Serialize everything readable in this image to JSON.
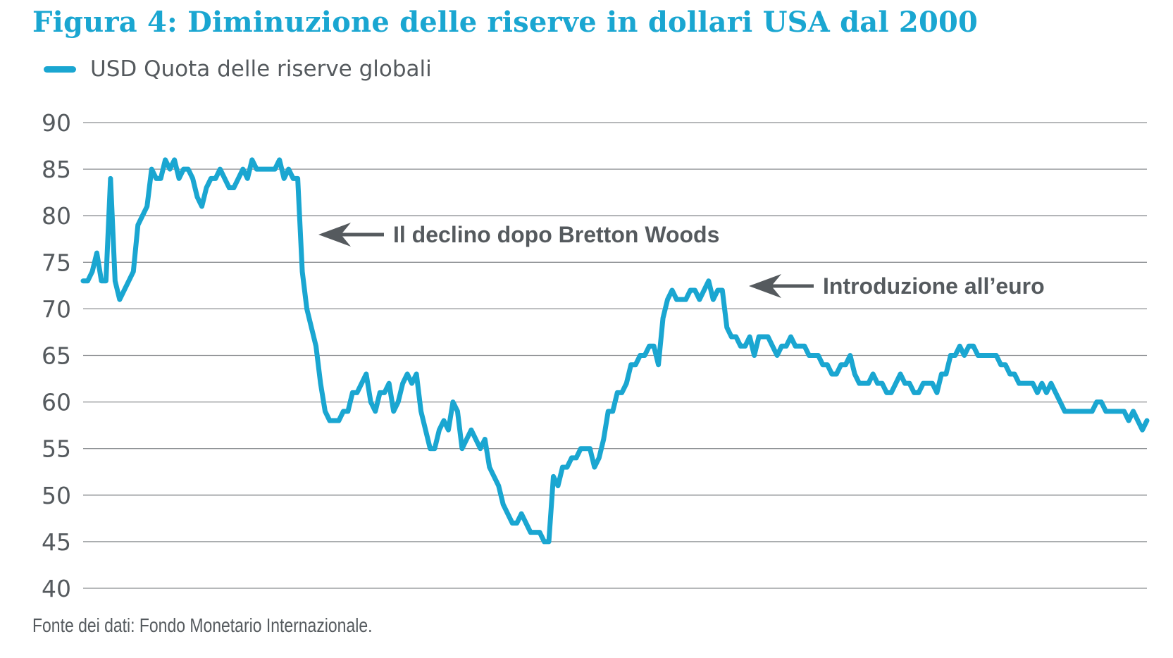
{
  "title": "Figura 4: Diminuzione delle riserve in dollari USA dal 2000",
  "source": "Fonte dei dati: Fondo Monetario Internazionale.",
  "colors": {
    "line": "#1aa6d1",
    "title": "#1aa6d1",
    "grid": "#8a8d90",
    "text": "#555a5e",
    "annotation": "#555a5e"
  },
  "chart_data": {
    "type": "line",
    "title": "Figura 4: Diminuzione delle riserve in dollari USA dal 2000",
    "xlabel": "",
    "ylabel": "",
    "ylim": [
      40,
      90
    ],
    "yticks": [
      90,
      85,
      80,
      75,
      70,
      65,
      60,
      55,
      50,
      45,
      40
    ],
    "grid": true,
    "legend_position": "top-left",
    "series": [
      {
        "name": "USD Quota delle riserve globali",
        "values": [
          73,
          73,
          74,
          76,
          73,
          73,
          84,
          73,
          71,
          72,
          73,
          74,
          79,
          80,
          81,
          85,
          84,
          84,
          86,
          85,
          86,
          84,
          85,
          85,
          84,
          82,
          81,
          83,
          84,
          84,
          85,
          84,
          83,
          83,
          84,
          85,
          84,
          86,
          85,
          85,
          85,
          85,
          85,
          86,
          84,
          85,
          84,
          84,
          74,
          70,
          68,
          66,
          62,
          59,
          58,
          58,
          58,
          59,
          59,
          61,
          61,
          62,
          63,
          60,
          59,
          61,
          61,
          62,
          59,
          60,
          62,
          63,
          62,
          63,
          59,
          57,
          55,
          55,
          57,
          58,
          57,
          60,
          59,
          55,
          56,
          57,
          56,
          55,
          56,
          53,
          52,
          51,
          49,
          48,
          47,
          47,
          48,
          47,
          46,
          46,
          46,
          45,
          45,
          52,
          51,
          53,
          53,
          54,
          54,
          55,
          55,
          55,
          53,
          54,
          56,
          59,
          59,
          61,
          61,
          62,
          64,
          64,
          65,
          65,
          66,
          66,
          64,
          69,
          71,
          72,
          71,
          71,
          71,
          72,
          72,
          71,
          72,
          73,
          71,
          72,
          72,
          68,
          67,
          67,
          66,
          66,
          67,
          65,
          67,
          67,
          67,
          66,
          65,
          66,
          66,
          67,
          66,
          66,
          66,
          65,
          65,
          65,
          64,
          64,
          63,
          63,
          64,
          64,
          65,
          63,
          62,
          62,
          62,
          63,
          62,
          62,
          61,
          61,
          62,
          63,
          62,
          62,
          61,
          61,
          62,
          62,
          62,
          61,
          63,
          63,
          65,
          65,
          66,
          65,
          66,
          66,
          65,
          65,
          65,
          65,
          65,
          64,
          64,
          63,
          63,
          62,
          62,
          62,
          62,
          61,
          62,
          61,
          62,
          61,
          60,
          59,
          59,
          59,
          59,
          59,
          59,
          59,
          60,
          60,
          59,
          59,
          59,
          59,
          59,
          58,
          59,
          58,
          57,
          58
        ]
      }
    ],
    "annotations": [
      {
        "text": "Il declino dopo Bretton Woods"
      },
      {
        "text": "Introduzione all’euro"
      }
    ]
  }
}
